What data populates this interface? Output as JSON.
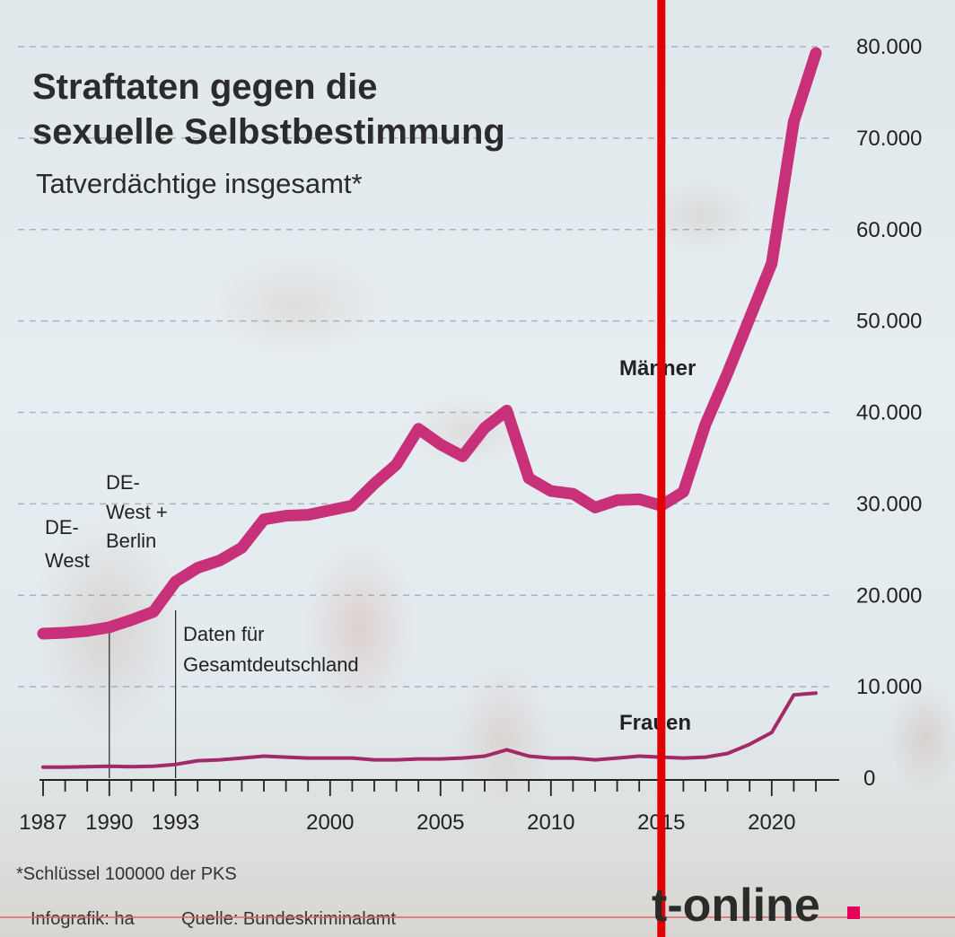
{
  "colors": {
    "men_line": "#c8307a",
    "women_line": "#a32a68",
    "red_marker": "#e00000",
    "grid": "#9aa7ad",
    "logo_dot": "#e5005a"
  },
  "footnote": "*Schlüssel 100000 der PKS",
  "credit": "Infografik: ha",
  "source": "Quelle: Bundeskriminalamt",
  "logo": "t-online",
  "chart_data": {
    "type": "line",
    "title": "Straftaten gegen die sexuelle Selbstbestimmung",
    "title_lines": [
      "Straftaten gegen die",
      "sexuelle Selbstbestimmung"
    ],
    "subtitle": "Tatverdächtige insgesamt*",
    "xlim": [
      1987,
      2022
    ],
    "ylim": [
      0,
      80000
    ],
    "x_ticks": [
      1987,
      1990,
      1993,
      2000,
      2005,
      2010,
      2015,
      2020
    ],
    "y_ticks": [
      0,
      10000,
      20000,
      30000,
      40000,
      50000,
      60000,
      70000,
      80000
    ],
    "y_tick_labels": [
      "0",
      "10.000",
      "20.000",
      "30.000",
      "40.000",
      "50.000",
      "60.000",
      "70.000",
      "80.000"
    ],
    "grid": true,
    "series": [
      {
        "name": "Männer",
        "x": [
          1987,
          1988,
          1989,
          1990,
          1991,
          1992,
          1993,
          1994,
          1995,
          1996,
          1997,
          1998,
          1999,
          2000,
          2001,
          2002,
          2003,
          2004,
          2005,
          2006,
          2007,
          2008,
          2009,
          2010,
          2011,
          2012,
          2013,
          2014,
          2015,
          2016,
          2017,
          2018,
          2019,
          2020,
          2021,
          2022
        ],
        "values": [
          15800,
          15900,
          16100,
          16500,
          17300,
          18200,
          21500,
          23000,
          23800,
          25200,
          28300,
          28700,
          28800,
          29300,
          29800,
          32200,
          34300,
          38200,
          36500,
          35200,
          38300,
          40200,
          32800,
          31400,
          31100,
          29600,
          30400,
          30500,
          29800,
          31300,
          38700,
          44300,
          50300,
          56300,
          71800,
          79300
        ]
      },
      {
        "name": "Frauen",
        "x": [
          1987,
          1988,
          1989,
          1990,
          1991,
          1992,
          1993,
          1994,
          1995,
          1996,
          1997,
          1998,
          1999,
          2000,
          2001,
          2002,
          2003,
          2004,
          2005,
          2006,
          2007,
          2008,
          2009,
          2010,
          2011,
          2012,
          2013,
          2014,
          2015,
          2016,
          2017,
          2018,
          2019,
          2020,
          2021,
          2022
        ],
        "values": [
          1200,
          1200,
          1250,
          1300,
          1250,
          1300,
          1500,
          1900,
          2000,
          2200,
          2400,
          2300,
          2200,
          2200,
          2200,
          2000,
          2000,
          2100,
          2100,
          2200,
          2400,
          3100,
          2400,
          2200,
          2200,
          2000,
          2200,
          2400,
          2300,
          2200,
          2300,
          2700,
          3700,
          5000,
          9100,
          9300
        ]
      }
    ],
    "annotations": [
      {
        "year": 1987,
        "lines": [
          "DE-",
          "West"
        ]
      },
      {
        "year": 1990,
        "lines": [
          "DE-",
          "West +",
          "Berlin"
        ]
      },
      {
        "year": 1993,
        "lines": [
          "Daten für",
          "Gesamtdeutschland"
        ]
      }
    ],
    "highlight_year": 2015
  }
}
